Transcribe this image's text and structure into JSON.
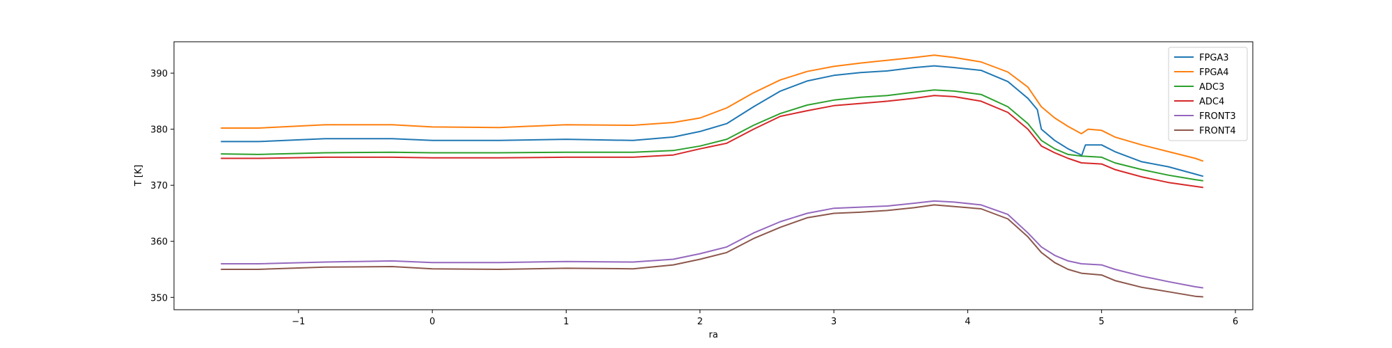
{
  "chart_data": {
    "type": "line",
    "title": "",
    "xlabel": "ra",
    "ylabel": "T [K]",
    "xlim": [
      -1.93,
      6.13
    ],
    "ylim": [
      347.8,
      395.6
    ],
    "xticks": [
      -1,
      0,
      1,
      2,
      3,
      4,
      5,
      6
    ],
    "xtick_labels": [
      "−1",
      "0",
      "1",
      "2",
      "3",
      "4",
      "5",
      "6"
    ],
    "yticks": [
      350,
      360,
      370,
      380,
      390
    ],
    "ytick_labels": [
      "350",
      "360",
      "370",
      "380",
      "390"
    ],
    "grid": false,
    "legend_position": "top-right",
    "series": [
      {
        "name": "FPGA3",
        "color": "#1f77b4",
        "x": [
          -1.58,
          -1.3,
          -0.8,
          -0.3,
          0.0,
          0.5,
          1.0,
          1.5,
          1.8,
          2.0,
          2.2,
          2.4,
          2.6,
          2.8,
          3.0,
          3.2,
          3.4,
          3.6,
          3.75,
          3.9,
          4.1,
          4.3,
          4.45,
          4.52,
          4.55,
          4.65,
          4.75,
          4.84,
          4.85,
          4.88,
          5.0,
          5.1,
          5.3,
          5.5,
          5.7,
          5.76
        ],
        "y": [
          377.8,
          377.8,
          378.3,
          378.3,
          378.0,
          378.0,
          378.2,
          378.0,
          378.6,
          379.6,
          381.0,
          384.0,
          386.8,
          388.6,
          389.6,
          390.1,
          390.4,
          391.0,
          391.3,
          391.0,
          390.5,
          388.5,
          385.5,
          383.5,
          380.0,
          378.0,
          376.5,
          375.5,
          375.2,
          377.2,
          377.2,
          376.0,
          374.2,
          373.3,
          372.0,
          371.6
        ]
      },
      {
        "name": "FPGA4",
        "color": "#ff7f0e",
        "x": [
          -1.58,
          -1.3,
          -0.8,
          -0.3,
          0.0,
          0.5,
          1.0,
          1.5,
          1.8,
          2.0,
          2.2,
          2.4,
          2.6,
          2.8,
          3.0,
          3.2,
          3.4,
          3.6,
          3.75,
          3.9,
          4.1,
          4.3,
          4.45,
          4.55,
          4.65,
          4.75,
          4.85,
          4.9,
          5.0,
          5.1,
          5.3,
          5.5,
          5.7,
          5.76
        ],
        "y": [
          380.2,
          380.2,
          380.8,
          380.8,
          380.4,
          380.3,
          380.8,
          380.7,
          381.2,
          382.0,
          383.8,
          386.5,
          388.8,
          390.3,
          391.2,
          391.8,
          392.3,
          392.8,
          393.2,
          392.8,
          392.0,
          390.2,
          387.5,
          384.0,
          382.0,
          380.5,
          379.2,
          380.0,
          379.8,
          378.6,
          377.2,
          376.0,
          374.8,
          374.3
        ]
      },
      {
        "name": "ADC3",
        "color": "#2ca02c",
        "x": [
          -1.58,
          -1.3,
          -0.8,
          -0.3,
          0.0,
          0.5,
          1.0,
          1.5,
          1.8,
          2.0,
          2.2,
          2.4,
          2.6,
          2.8,
          3.0,
          3.2,
          3.4,
          3.6,
          3.75,
          3.9,
          4.1,
          4.3,
          4.45,
          4.55,
          4.65,
          4.75,
          4.85,
          5.0,
          5.1,
          5.3,
          5.5,
          5.7,
          5.76
        ],
        "y": [
          375.6,
          375.5,
          375.8,
          375.9,
          375.8,
          375.8,
          375.9,
          375.9,
          376.2,
          377.0,
          378.2,
          380.7,
          382.8,
          384.3,
          385.2,
          385.7,
          386.0,
          386.6,
          387.0,
          386.8,
          386.2,
          384.0,
          381.0,
          378.0,
          376.5,
          375.5,
          375.2,
          375.0,
          374.0,
          372.8,
          371.8,
          371.0,
          370.8
        ]
      },
      {
        "name": "ADC4",
        "color": "#d62728",
        "x": [
          -1.58,
          -1.3,
          -0.8,
          -0.3,
          0.0,
          0.5,
          1.0,
          1.5,
          1.8,
          2.0,
          2.2,
          2.4,
          2.6,
          2.8,
          3.0,
          3.2,
          3.4,
          3.6,
          3.75,
          3.9,
          4.1,
          4.3,
          4.45,
          4.55,
          4.65,
          4.75,
          4.85,
          5.0,
          5.1,
          5.3,
          5.5,
          5.7,
          5.76
        ],
        "y": [
          374.8,
          374.8,
          375.0,
          375.0,
          374.9,
          374.9,
          375.0,
          375.0,
          375.4,
          376.5,
          377.5,
          380.0,
          382.3,
          383.3,
          384.2,
          384.6,
          385.0,
          385.5,
          386.0,
          385.8,
          385.0,
          383.0,
          380.0,
          377.0,
          375.8,
          374.8,
          374.0,
          373.8,
          372.8,
          371.5,
          370.5,
          369.8,
          369.6
        ]
      },
      {
        "name": "FRONT3",
        "color": "#9467bd",
        "x": [
          -1.58,
          -1.3,
          -0.8,
          -0.3,
          0.0,
          0.5,
          1.0,
          1.5,
          1.8,
          2.0,
          2.2,
          2.4,
          2.6,
          2.8,
          3.0,
          3.2,
          3.4,
          3.6,
          3.75,
          3.9,
          4.1,
          4.3,
          4.45,
          4.55,
          4.65,
          4.75,
          4.85,
          5.0,
          5.1,
          5.3,
          5.5,
          5.7,
          5.76
        ],
        "y": [
          356.0,
          356.0,
          356.3,
          356.5,
          356.2,
          356.2,
          356.4,
          356.3,
          356.8,
          357.8,
          359.0,
          361.5,
          363.5,
          365.0,
          365.9,
          366.1,
          366.3,
          366.8,
          367.2,
          367.0,
          366.5,
          364.8,
          361.5,
          359.0,
          357.5,
          356.5,
          356.0,
          355.8,
          355.0,
          353.8,
          352.8,
          351.9,
          351.7
        ]
      },
      {
        "name": "FRONT4",
        "color": "#8c564b",
        "x": [
          -1.58,
          -1.3,
          -0.8,
          -0.3,
          0.0,
          0.5,
          1.0,
          1.5,
          1.8,
          2.0,
          2.2,
          2.4,
          2.6,
          2.8,
          3.0,
          3.2,
          3.4,
          3.6,
          3.75,
          3.9,
          4.1,
          4.3,
          4.45,
          4.55,
          4.65,
          4.75,
          4.85,
          5.0,
          5.1,
          5.3,
          5.5,
          5.7,
          5.76
        ],
        "y": [
          355.0,
          355.0,
          355.4,
          355.5,
          355.1,
          355.0,
          355.2,
          355.1,
          355.8,
          356.8,
          358.0,
          360.5,
          362.5,
          364.2,
          365.0,
          365.2,
          365.5,
          366.0,
          366.5,
          366.2,
          365.8,
          364.0,
          360.8,
          358.0,
          356.2,
          355.0,
          354.3,
          354.0,
          353.0,
          351.8,
          351.0,
          350.2,
          350.1
        ]
      }
    ]
  }
}
